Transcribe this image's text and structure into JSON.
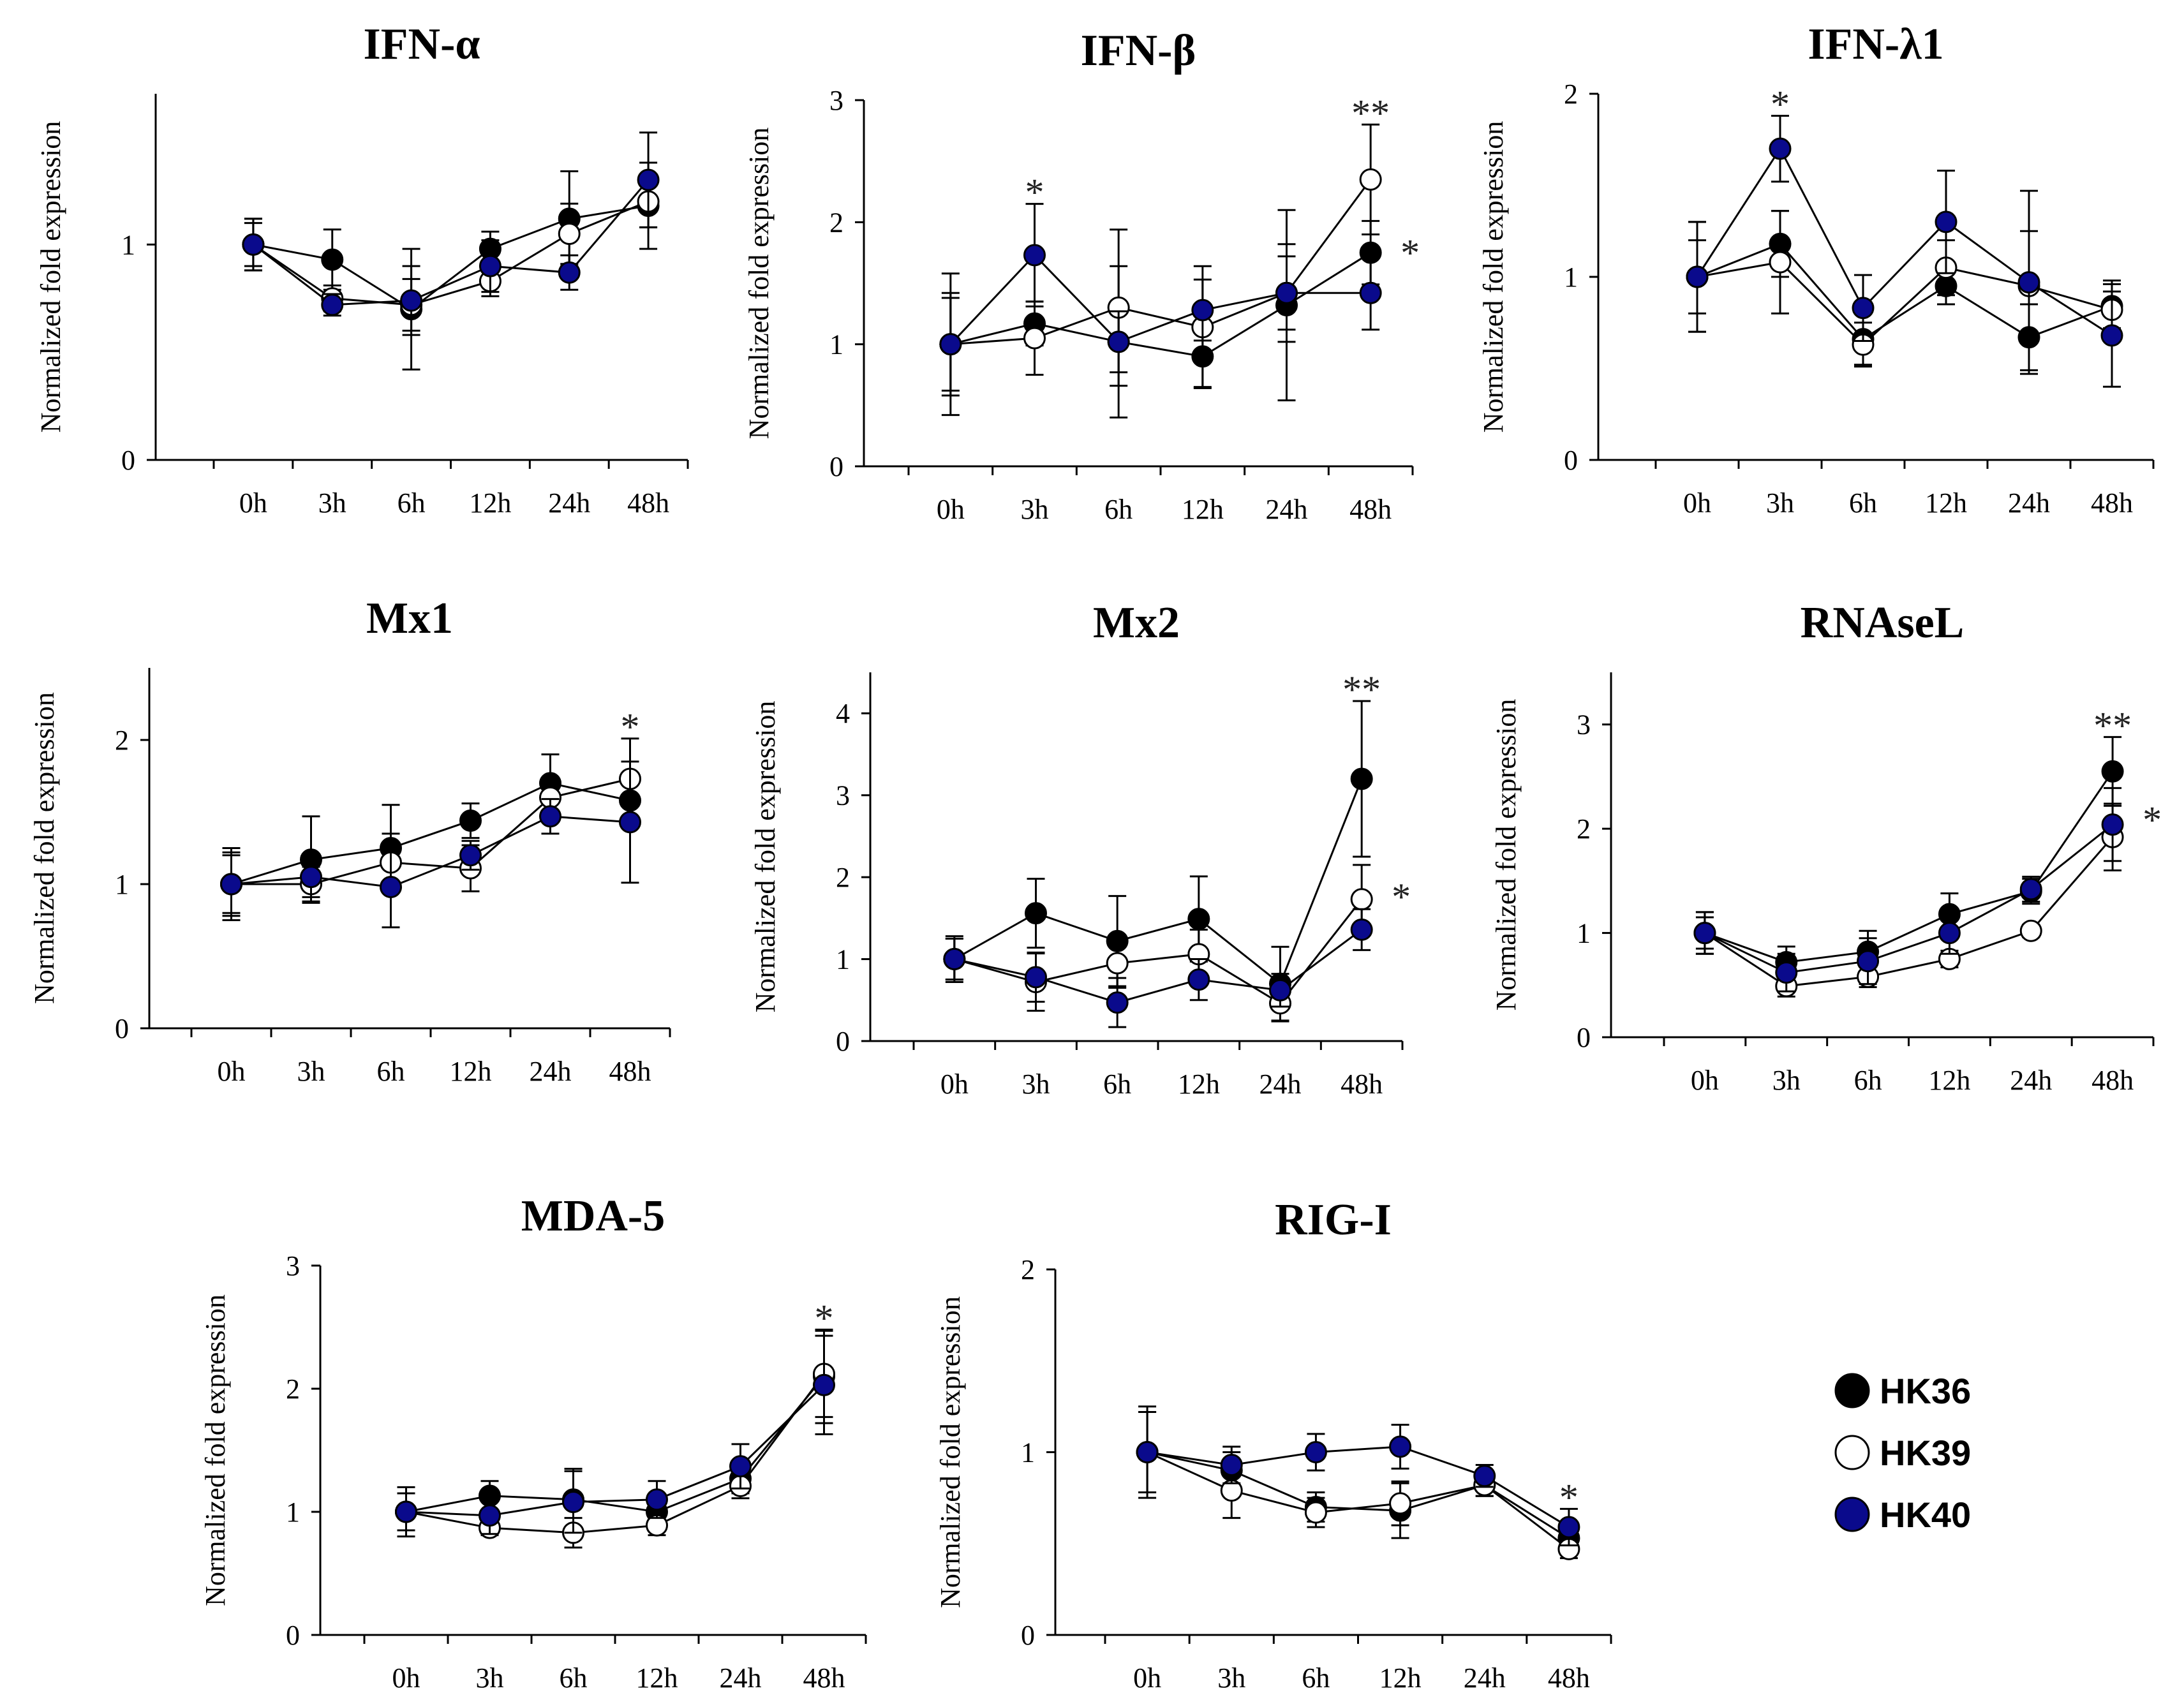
{
  "legend": [
    {
      "name": "HK36",
      "fill": "#000000"
    },
    {
      "name": "HK39",
      "fill": "#ffffff"
    },
    {
      "name": "HK40",
      "fill": "#0a0a8c"
    }
  ],
  "chart_data": [
    {
      "type": "line",
      "title": "IFN-α",
      "ylabel": "Normalized fold expression",
      "categories": [
        "0h",
        "3h",
        "6h",
        "12h",
        "24h",
        "48h"
      ],
      "ylim": [
        0,
        1.7
      ],
      "yticks": [
        0,
        1
      ],
      "series": [
        {
          "name": "HK36",
          "values": [
            1.0,
            0.93,
            0.7,
            0.98,
            1.12,
            1.18
          ],
          "errors": [
            0.12,
            0.14,
            0.28,
            0.08,
            0.22,
            0.2
          ]
        },
        {
          "name": "HK39",
          "values": [
            1.0,
            0.75,
            0.72,
            0.83,
            1.05,
            1.2
          ],
          "errors": [
            0.12,
            0.06,
            0.12,
            0.07,
            0.14,
            0.12
          ]
        },
        {
          "name": "HK40",
          "values": [
            1.0,
            0.72,
            0.74,
            0.9,
            0.87,
            1.3
          ],
          "errors": [
            0.1,
            0.05,
            0.16,
            0.12,
            0.08,
            0.22
          ]
        }
      ],
      "annotations": []
    },
    {
      "type": "line",
      "title": "IFN-β",
      "ylabel": "Normalized fold expression",
      "categories": [
        "0h",
        "3h",
        "6h",
        "12h",
        "24h",
        "48h"
      ],
      "ylim": [
        0,
        3
      ],
      "yticks": [
        0,
        1,
        2,
        3
      ],
      "series": [
        {
          "name": "HK36",
          "values": [
            1.0,
            1.17,
            1.02,
            0.9,
            1.32,
            1.75
          ],
          "errors": [
            0.58,
            0.18,
            0.62,
            0.25,
            0.78,
            0.26
          ]
        },
        {
          "name": "HK39",
          "values": [
            1.0,
            1.05,
            1.3,
            1.14,
            1.42,
            2.35
          ],
          "errors": [
            0.42,
            0.3,
            0.64,
            0.5,
            0.4,
            0.45
          ]
        },
        {
          "name": "HK40",
          "values": [
            1.0,
            1.73,
            1.02,
            1.28,
            1.42,
            1.42
          ],
          "errors": [
            0.38,
            0.42,
            0.25,
            0.25,
            0.3,
            0.3
          ]
        }
      ],
      "annotations": [
        {
          "category": "3h",
          "text": "*"
        },
        {
          "category": "48h",
          "text": "**"
        },
        {
          "category": "48h",
          "text": "*"
        }
      ]
    },
    {
      "type": "line",
      "title": "IFN-λ1",
      "ylabel": "Normalized fold expression",
      "categories": [
        "0h",
        "3h",
        "6h",
        "12h",
        "24h",
        "48h"
      ],
      "ylim": [
        0,
        2
      ],
      "yticks": [
        0,
        1,
        2
      ],
      "series": [
        {
          "name": "HK36",
          "values": [
            1.0,
            1.18,
            0.66,
            0.95,
            0.67,
            0.84
          ],
          "errors": [
            0.3,
            0.18,
            0.14,
            0.1,
            0.18,
            0.14
          ]
        },
        {
          "name": "HK39",
          "values": [
            1.0,
            1.08,
            0.63,
            1.05,
            0.95,
            0.82
          ],
          "errors": [
            0.2,
            0.28,
            0.12,
            0.15,
            0.3,
            0.1
          ]
        },
        {
          "name": "HK40",
          "values": [
            1.0,
            1.7,
            0.83,
            1.3,
            0.97,
            0.68
          ],
          "errors": [
            0.3,
            0.18,
            0.18,
            0.28,
            0.5,
            0.28
          ]
        }
      ],
      "annotations": [
        {
          "category": "3h",
          "text": "*"
        }
      ]
    },
    {
      "type": "line",
      "title": "Mx1",
      "ylabel": "Normalized fold expression",
      "categories": [
        "0h",
        "3h",
        "6h",
        "12h",
        "24h",
        "48h"
      ],
      "ylim": [
        0,
        2.5
      ],
      "yticks": [
        0,
        1,
        2
      ],
      "series": [
        {
          "name": "HK36",
          "values": [
            1.0,
            1.17,
            1.25,
            1.44,
            1.7,
            1.58
          ],
          "errors": [
            0.25,
            0.3,
            0.3,
            0.12,
            0.2,
            0.18
          ]
        },
        {
          "name": "HK39",
          "values": [
            1.0,
            1.0,
            1.15,
            1.11,
            1.6,
            1.73
          ],
          "errors": [
            0.2,
            0.12,
            0.2,
            0.16,
            0.12,
            0.28
          ]
        },
        {
          "name": "HK40",
          "values": [
            1.0,
            1.05,
            0.98,
            1.2,
            1.47,
            1.43
          ],
          "errors": [
            0.22,
            0.14,
            0.28,
            0.1,
            0.12,
            0.42
          ]
        }
      ],
      "annotations": [
        {
          "category": "48h",
          "text": "*"
        }
      ]
    },
    {
      "type": "line",
      "title": "Mx2",
      "ylabel": "Normalized fold expression",
      "categories": [
        "0h",
        "3h",
        "6h",
        "12h",
        "24h",
        "48h"
      ],
      "ylim": [
        0,
        4.5
      ],
      "yticks": [
        0,
        1,
        2,
        3,
        4
      ],
      "series": [
        {
          "name": "HK36",
          "values": [
            1.0,
            1.56,
            1.22,
            1.49,
            0.7,
            3.2
          ],
          "errors": [
            0.28,
            0.42,
            0.55,
            0.52,
            0.45,
            0.95
          ]
        },
        {
          "name": "HK39",
          "values": [
            1.0,
            0.72,
            0.95,
            1.06,
            0.46,
            1.73
          ],
          "errors": [
            0.25,
            0.35,
            0.3,
            0.3,
            0.22,
            0.42
          ]
        },
        {
          "name": "HK40",
          "values": [
            1.0,
            0.78,
            0.47,
            0.75,
            0.62,
            1.36
          ],
          "errors": [
            0.25,
            0.3,
            0.3,
            0.25,
            0.2,
            0.25
          ]
        }
      ],
      "annotations": [
        {
          "category": "48h",
          "text": "**"
        },
        {
          "category": "48h",
          "text": "*"
        }
      ]
    },
    {
      "type": "line",
      "title": "RNAseL",
      "ylabel": "Normalized fold expression",
      "categories": [
        "0h",
        "3h",
        "6h",
        "12h",
        "24h",
        "48h"
      ],
      "ylim": [
        0,
        3.5
      ],
      "yticks": [
        0,
        1,
        2,
        3
      ],
      "series": [
        {
          "name": "HK36",
          "values": [
            1.0,
            0.72,
            0.82,
            1.18,
            1.4,
            2.55
          ],
          "errors": [
            0.2,
            0.15,
            0.2,
            0.2,
            0.12,
            0.33
          ]
        },
        {
          "name": "HK39",
          "values": [
            1.0,
            0.49,
            0.58,
            0.75,
            1.02,
            1.92
          ],
          "errors": [
            0.15,
            0.1,
            0.1,
            0.08,
            0.06,
            0.32
          ]
        },
        {
          "name": "HK40",
          "values": [
            1.0,
            0.62,
            0.73,
            1.0,
            1.42,
            2.04
          ],
          "errors": [
            0.2,
            0.18,
            0.22,
            0.2,
            0.12,
            0.35
          ]
        }
      ],
      "annotations": [
        {
          "category": "48h",
          "text": "**"
        },
        {
          "category": "48h",
          "text": "*"
        }
      ]
    },
    {
      "type": "line",
      "title": "MDA-5",
      "ylabel": "Normalized fold expression",
      "categories": [
        "0h",
        "3h",
        "6h",
        "12h",
        "24h",
        "48h"
      ],
      "ylim": [
        0,
        3
      ],
      "yticks": [
        0,
        1,
        2,
        3
      ],
      "series": [
        {
          "name": "HK36",
          "values": [
            1.0,
            1.13,
            1.1,
            1.0,
            1.27,
            2.1
          ],
          "errors": [
            0.2,
            0.12,
            0.25,
            0.12,
            0.12,
            0.38
          ]
        },
        {
          "name": "HK39",
          "values": [
            1.0,
            0.87,
            0.83,
            0.89,
            1.21,
            2.12
          ],
          "errors": [
            0.15,
            0.06,
            0.12,
            0.08,
            0.1,
            0.35
          ]
        },
        {
          "name": "HK40",
          "values": [
            1.0,
            0.97,
            1.08,
            1.1,
            1.37,
            2.03
          ],
          "errors": [
            0.15,
            0.15,
            0.25,
            0.15,
            0.18,
            0.4
          ]
        }
      ],
      "annotations": [
        {
          "category": "48h",
          "text": "*"
        }
      ]
    },
    {
      "type": "line",
      "title": "RIG-I",
      "ylabel": "Normalized fold expression",
      "categories": [
        "0h",
        "3h",
        "6h",
        "12h",
        "24h",
        "48h"
      ],
      "ylim": [
        0,
        2
      ],
      "yticks": [
        0,
        1,
        2
      ],
      "series": [
        {
          "name": "HK36",
          "values": [
            1.0,
            0.9,
            0.7,
            0.68,
            0.82,
            0.53
          ],
          "errors": [
            0.22,
            0.1,
            0.08,
            0.15,
            0.06,
            0.08
          ]
        },
        {
          "name": "HK39",
          "values": [
            1.0,
            0.79,
            0.67,
            0.72,
            0.82,
            0.47
          ],
          "errors": [
            0.25,
            0.15,
            0.08,
            0.12,
            0.06,
            0.05
          ]
        },
        {
          "name": "HK40",
          "values": [
            1.0,
            0.93,
            1.0,
            1.03,
            0.87,
            0.59
          ],
          "errors": [
            0.22,
            0.1,
            0.1,
            0.12,
            0.06,
            0.1
          ]
        }
      ],
      "annotations": [
        {
          "category": "48h",
          "text": "*"
        }
      ]
    }
  ]
}
